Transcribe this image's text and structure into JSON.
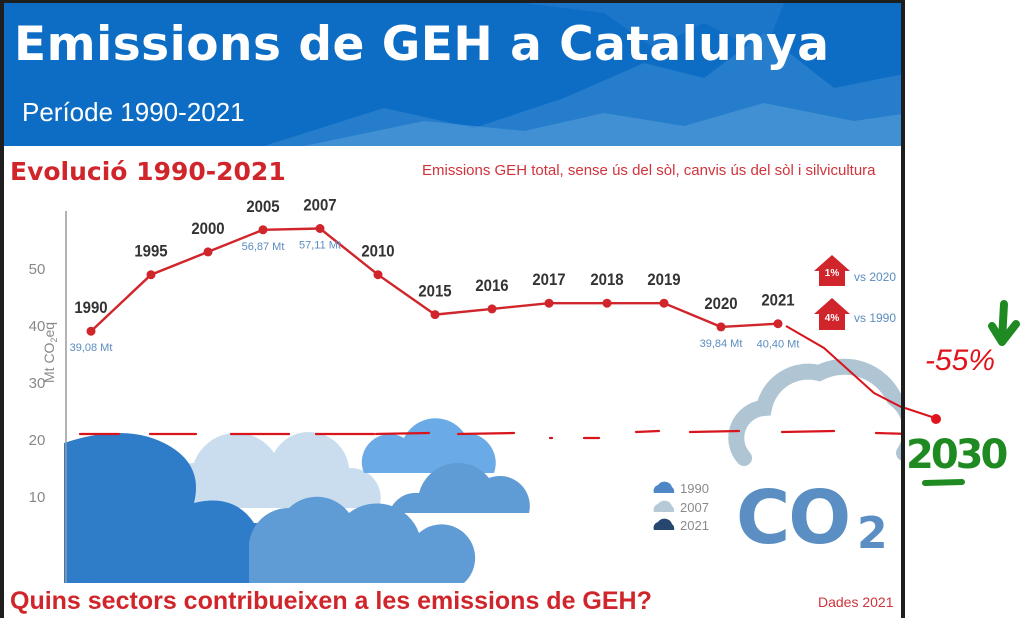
{
  "header": {
    "title": "Emissions de GEH a Catalunya",
    "subtitle": "Període 1990-2021",
    "background_color": "#0d6dc4"
  },
  "section": {
    "title": "Evolució 1990-2021",
    "description": "Emissions GEH total, sense ús del sòl, canvis ús del sòl i silvicultura"
  },
  "legend": {
    "items": [
      {
        "label": "1990",
        "color": "#4f86c6"
      },
      {
        "label": "2007",
        "color": "#b5c9d6"
      },
      {
        "label": "2021",
        "color": "#24466f"
      }
    ]
  },
  "badges": [
    {
      "value": "1%",
      "label": "vs 2020",
      "direction": "up"
    },
    {
      "value": "4%",
      "label": "vs 1990",
      "direction": "up"
    }
  ],
  "co2_logo": {
    "text": "CO",
    "subscript": "2"
  },
  "footer": {
    "question": "Quins sectors contribueixen a les emissions de GEH?",
    "source": "Dades 2021"
  },
  "annotations": {
    "target_reduction": "-55%",
    "target_year": "2030",
    "arrow": "down-arrow"
  },
  "chart_data": {
    "type": "line",
    "title": "Evolució 1990-2021",
    "subtitle": "Emissions GEH total, sense ús del sòl, canvis ús del sòl i silvicultura",
    "xlabel": "",
    "ylabel": "Mt CO2eq",
    "ylim": [
      0,
      58
    ],
    "yticks": [
      10,
      20,
      30,
      40,
      50
    ],
    "grid": false,
    "categories": [
      "1990",
      "1995",
      "2000",
      "2005",
      "2007",
      "2010",
      "2015",
      "2016",
      "2017",
      "2018",
      "2019",
      "2020",
      "2021"
    ],
    "series": [
      {
        "name": "Emissions GEH total",
        "color": "#d0252b",
        "values": [
          39.08,
          49.0,
          53.0,
          56.87,
          57.11,
          49.0,
          42.0,
          43.0,
          44.0,
          44.0,
          44.0,
          39.84,
          40.4
        ]
      }
    ],
    "data_labels": [
      {
        "category": "1990",
        "text": "39,08 Mt"
      },
      {
        "category": "2005",
        "text": "56,87 Mt"
      },
      {
        "category": "2007",
        "text": "57,11 Mt"
      },
      {
        "category": "2020",
        "text": "39,84 Mt"
      },
      {
        "category": "2021",
        "text": "40,40 Mt"
      }
    ],
    "handdrawn_projection": {
      "from": {
        "category": "2021",
        "value": 40.4
      },
      "to": {
        "category": "2030",
        "value": 22.5
      },
      "label": "-55%",
      "reference_line_value": 21
    }
  }
}
